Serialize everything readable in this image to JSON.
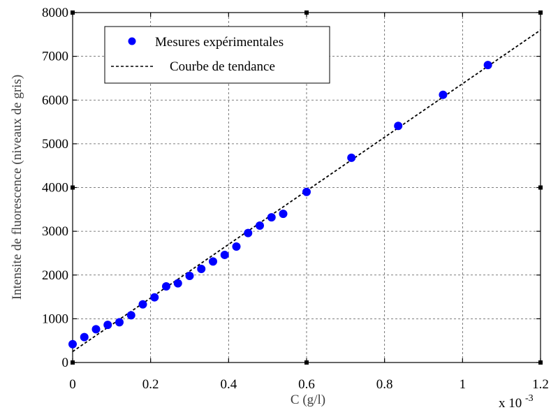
{
  "chart_data": {
    "type": "scatter",
    "xlabel": "C (g/l)",
    "ylabel": "Intensite de fluorescence (niveaux de gris)",
    "x_multiplier_label": "x 10",
    "x_multiplier_exponent": "-3",
    "xlim": [
      0,
      1.2
    ],
    "ylim": [
      0,
      8000
    ],
    "x_ticks": [
      0,
      0.2,
      0.4,
      0.6,
      0.8,
      1,
      1.2
    ],
    "x_tick_labels": [
      "0",
      "0.2",
      "0.4",
      "0.6",
      "0.8",
      "1",
      "1.2"
    ],
    "y_ticks": [
      0,
      1000,
      2000,
      3000,
      4000,
      5000,
      6000,
      7000,
      8000
    ],
    "y_tick_labels": [
      "0",
      "1000",
      "2000",
      "3000",
      "4000",
      "5000",
      "6000",
      "7000",
      "8000"
    ],
    "grid": true,
    "legend_position": "top-left",
    "series": [
      {
        "name": "Mesures expérimentales",
        "kind": "points",
        "color": "#0000ff",
        "x": [
          0,
          0.03,
          0.06,
          0.09,
          0.12,
          0.15,
          0.18,
          0.21,
          0.24,
          0.27,
          0.3,
          0.33,
          0.36,
          0.39,
          0.42,
          0.45,
          0.48,
          0.51,
          0.54,
          0.6,
          0.715,
          0.835,
          0.95,
          1.065
        ],
        "y": [
          420,
          580,
          760,
          860,
          920,
          1080,
          1330,
          1490,
          1740,
          1810,
          1980,
          2140,
          2310,
          2460,
          2650,
          2960,
          3130,
          3320,
          3400,
          3900,
          4680,
          5410,
          6120,
          6800
        ]
      },
      {
        "name": "Courbe de tendance",
        "kind": "dashed-line",
        "color": "#000000",
        "x": [
          0,
          1.2
        ],
        "y": [
          250,
          7600
        ]
      }
    ]
  }
}
